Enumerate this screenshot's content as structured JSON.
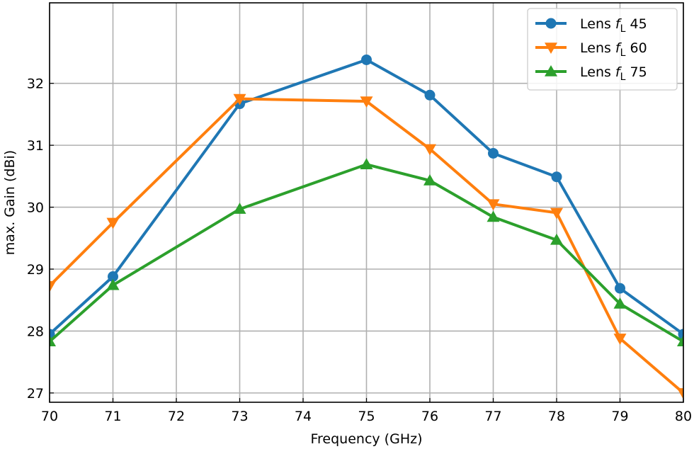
{
  "chart_data": {
    "type": "line",
    "xlabel": "Frequency (GHz)",
    "ylabel": "max. Gain (dBi)",
    "xlim": [
      70,
      80
    ],
    "ylim": [
      26.85,
      33.3
    ],
    "xticks": [
      70,
      71,
      72,
      73,
      74,
      75,
      76,
      77,
      78,
      79,
      80
    ],
    "yticks": [
      27,
      28,
      29,
      30,
      31,
      32
    ],
    "grid": true,
    "legend_position": "top-right",
    "x": [
      70,
      71,
      73,
      75,
      76,
      77,
      78,
      79,
      80
    ],
    "series": [
      {
        "name_prefix": "Lens ",
        "name_italic": "f",
        "name_sub": "L",
        "name_suffix": " 45",
        "color": "#1f77b4",
        "marker": "circle",
        "values": [
          27.95,
          28.88,
          31.67,
          32.38,
          31.81,
          30.87,
          30.49,
          28.69,
          27.95
        ]
      },
      {
        "name_prefix": "Lens ",
        "name_italic": "f",
        "name_sub": "L",
        "name_suffix": " 60",
        "color": "#ff7f0e",
        "marker": "triangle-down",
        "values": [
          28.73,
          29.75,
          31.75,
          31.71,
          30.94,
          30.05,
          29.91,
          27.88,
          27.0
        ]
      },
      {
        "name_prefix": "Lens ",
        "name_italic": "f",
        "name_sub": "L",
        "name_suffix": " 75",
        "color": "#2ca02c",
        "marker": "triangle-up",
        "values": [
          27.83,
          28.74,
          29.97,
          30.69,
          30.43,
          29.84,
          29.47,
          28.44,
          27.83
        ]
      }
    ]
  }
}
